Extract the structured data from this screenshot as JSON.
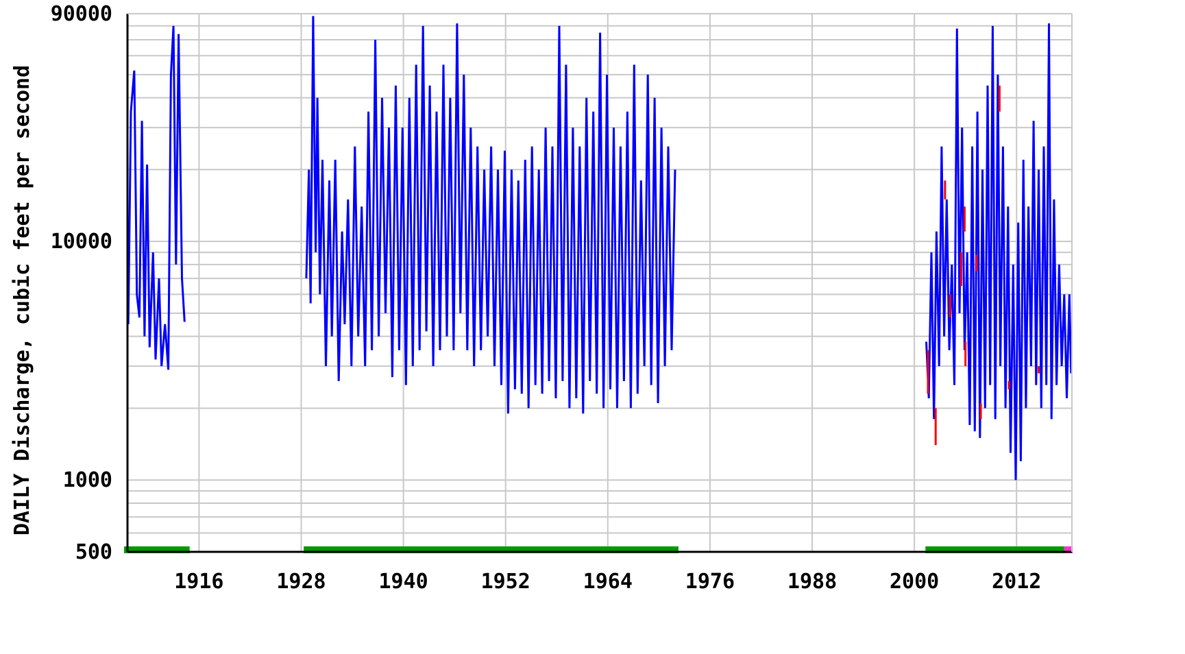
{
  "chart_data": {
    "type": "line",
    "title": "",
    "ylabel": "DAILY Discharge, cubic feet per second",
    "xlabel": "",
    "y_scale": "log",
    "ylim": [
      500,
      90000
    ],
    "xlim": [
      1907.6,
      2018.5
    ],
    "y_ticks": [
      {
        "value": 90000,
        "label": "90000"
      },
      {
        "value": 10000,
        "label": "10000"
      },
      {
        "value": 1000,
        "label": "1000"
      },
      {
        "value": 500,
        "label": "500"
      }
    ],
    "x_ticks": [
      {
        "value": 1916,
        "label": "1916"
      },
      {
        "value": 1928,
        "label": "1928"
      },
      {
        "value": 1940,
        "label": "1940"
      },
      {
        "value": 1952,
        "label": "1952"
      },
      {
        "value": 1964,
        "label": "1964"
      },
      {
        "value": 1976,
        "label": "1976"
      },
      {
        "value": 1988,
        "label": "1988"
      },
      {
        "value": 2000,
        "label": "2000"
      },
      {
        "value": 2012,
        "label": "2012"
      }
    ],
    "grid": true,
    "colors": {
      "discharge": "#0000ff",
      "estimated": "#ff0000",
      "approved_period": "#009900",
      "provisional_period": "#ff33cc",
      "grid": "#c8c8c8",
      "axis": "#000000"
    },
    "series": [
      {
        "color": "#0000ff",
        "segments": [
          {
            "x": [
              1907.7,
              1908.0,
              1908.4,
              1908.7,
              1909.0,
              1909.3,
              1909.6,
              1909.9,
              1910.2,
              1910.6,
              1910.9,
              1911.3,
              1911.6,
              1912.0,
              1912.4,
              1912.7,
              1913.0,
              1913.3,
              1913.6,
              1914.0,
              1914.3
            ],
            "y": [
              4500,
              35000,
              52000,
              6000,
              4800,
              32000,
              4000,
              21000,
              3600,
              9000,
              3200,
              7000,
              3000,
              4500,
              2900,
              50000,
              80000,
              8000,
              74000,
              7000,
              4600
            ]
          },
          {
            "x": [
              1928.6,
              1928.9,
              1929.1,
              1929.4,
              1929.7,
              1929.9,
              1930.2,
              1930.5,
              1930.9,
              1931.3,
              1931.6,
              1932.0,
              1932.4,
              1932.8,
              1933.1,
              1933.5,
              1933.9,
              1934.3,
              1934.7,
              1935.1,
              1935.5,
              1935.9,
              1936.3,
              1936.7,
              1937.1,
              1937.5,
              1937.9,
              1938.3,
              1938.7,
              1939.1,
              1939.5,
              1939.9,
              1940.3,
              1940.7,
              1941.1,
              1941.5,
              1941.9,
              1942.3,
              1942.7,
              1943.1,
              1943.5,
              1943.9,
              1944.3,
              1944.7,
              1945.1,
              1945.5,
              1945.9,
              1946.3,
              1946.7,
              1947.1,
              1947.5,
              1947.9,
              1948.3,
              1948.7,
              1949.1,
              1949.5,
              1949.9,
              1950.3,
              1950.7,
              1951.1,
              1951.5,
              1951.9,
              1952.3,
              1952.7,
              1953.1,
              1953.5,
              1953.9,
              1954.3,
              1954.7,
              1955.1,
              1955.5,
              1955.9,
              1956.3,
              1956.7,
              1957.1,
              1957.5,
              1957.9,
              1958.3,
              1958.7,
              1959.1,
              1959.5,
              1959.9,
              1960.3,
              1960.7,
              1961.1,
              1961.5,
              1961.9,
              1962.3,
              1962.7,
              1963.1,
              1963.5,
              1963.9,
              1964.3,
              1964.7,
              1965.1,
              1965.5,
              1965.9,
              1966.3,
              1966.7,
              1967.1,
              1967.5,
              1967.9,
              1968.3,
              1968.7,
              1969.1,
              1969.5,
              1969.9,
              1970.3,
              1970.7,
              1971.1,
              1971.5,
              1971.9
            ],
            "y": [
              7000,
              20000,
              5500,
              88000,
              9000,
              40000,
              6000,
              22000,
              3000,
              18000,
              4000,
              22000,
              2600,
              11000,
              4500,
              15000,
              3000,
              25000,
              4000,
              14000,
              3000,
              35000,
              3500,
              70000,
              4000,
              40000,
              5000,
              30000,
              2700,
              45000,
              3500,
              30000,
              2500,
              40000,
              3000,
              55000,
              3500,
              80000,
              4200,
              45000,
              3000,
              35000,
              3500,
              55000,
              4000,
              40000,
              3500,
              82000,
              5000,
              50000,
              3500,
              30000,
              3000,
              25000,
              3500,
              20000,
              4000,
              25000,
              3000,
              20000,
              2500,
              24000,
              1900,
              20000,
              2400,
              18000,
              2300,
              22000,
              2000,
              25000,
              2500,
              20000,
              2300,
              30000,
              2600,
              25000,
              2200,
              80000,
              2600,
              55000,
              2000,
              30000,
              2200,
              25000,
              1900,
              40000,
              2600,
              35000,
              2300,
              75000,
              2000,
              50000,
              2400,
              30000,
              2000,
              25000,
              2600,
              35000,
              2000,
              55000,
              2300,
              18000,
              3000,
              50000,
              2500,
              40000,
              2100,
              30000,
              3000,
              25000,
              3500,
              20000
            ]
          },
          {
            "x": [
              2001.4,
              2001.7,
              2002.0,
              2002.3,
              2002.6,
              2002.9,
              2003.2,
              2003.5,
              2003.8,
              2004.1,
              2004.4,
              2004.7,
              2005.0,
              2005.3,
              2005.6,
              2005.9,
              2006.2,
              2006.5,
              2006.8,
              2007.1,
              2007.4,
              2007.7,
              2008.0,
              2008.3,
              2008.6,
              2008.9,
              2009.2,
              2009.5,
              2009.8,
              2010.1,
              2010.4,
              2010.7,
              2011.0,
              2011.3,
              2011.6,
              2011.9,
              2012.2,
              2012.5,
              2012.8,
              2013.1,
              2013.4,
              2013.7,
              2014.0,
              2014.3,
              2014.6,
              2014.9,
              2015.2,
              2015.5,
              2015.8,
              2016.1,
              2016.4,
              2016.7,
              2017.0,
              2017.3,
              2017.6,
              2017.9,
              2018.2,
              2018.4
            ],
            "y": [
              3800,
              2200,
              9000,
              1800,
              11000,
              3000,
              25000,
              4000,
              15000,
              3500,
              8000,
              2500,
              78000,
              5000,
              30000,
              3500,
              9000,
              1700,
              25000,
              1600,
              35000,
              1500,
              20000,
              2000,
              45000,
              2500,
              80000,
              1800,
              50000,
              3000,
              25000,
              2000,
              14000,
              1300,
              8000,
              1000,
              12000,
              1200,
              22000,
              2000,
              14000,
              3000,
              32000,
              2500,
              20000,
              2000,
              25000,
              2500,
              82000,
              1800,
              15000,
              2500,
              8000,
              3000,
              6000,
              2200,
              6000,
              2800
            ]
          }
        ]
      }
    ],
    "estimated_marks": [
      {
        "x": 2001.6,
        "y": [
          2300,
          3500
        ]
      },
      {
        "x": 2002.5,
        "y": [
          1400,
          2000
        ]
      },
      {
        "x": 2003.6,
        "y": [
          15000,
          18000
        ]
      },
      {
        "x": 2004.2,
        "y": [
          4800,
          6000
        ]
      },
      {
        "x": 2005.5,
        "y": [
          6500,
          9000
        ]
      },
      {
        "x": 2005.9,
        "y": [
          11000,
          14000
        ]
      },
      {
        "x": 2006.0,
        "y": [
          3000,
          3800
        ]
      },
      {
        "x": 2007.3,
        "y": [
          7500,
          8800
        ]
      },
      {
        "x": 2007.8,
        "y": [
          1800,
          2100
        ]
      },
      {
        "x": 2010.0,
        "y": [
          35000,
          45000
        ]
      },
      {
        "x": 2011.1,
        "y": [
          2400,
          2600
        ]
      },
      {
        "x": 2014.6,
        "y": [
          2800,
          3000
        ]
      }
    ],
    "period_bars": [
      {
        "start": 1907.2,
        "end": 1914.9,
        "status": "approved",
        "color": "#009900"
      },
      {
        "start": 1928.3,
        "end": 1972.3,
        "status": "approved",
        "color": "#009900"
      },
      {
        "start": 2001.3,
        "end": 2017.6,
        "status": "approved",
        "color": "#009900"
      },
      {
        "start": 2017.6,
        "end": 2018.6,
        "status": "provisional",
        "color": "#ff33cc"
      }
    ]
  }
}
